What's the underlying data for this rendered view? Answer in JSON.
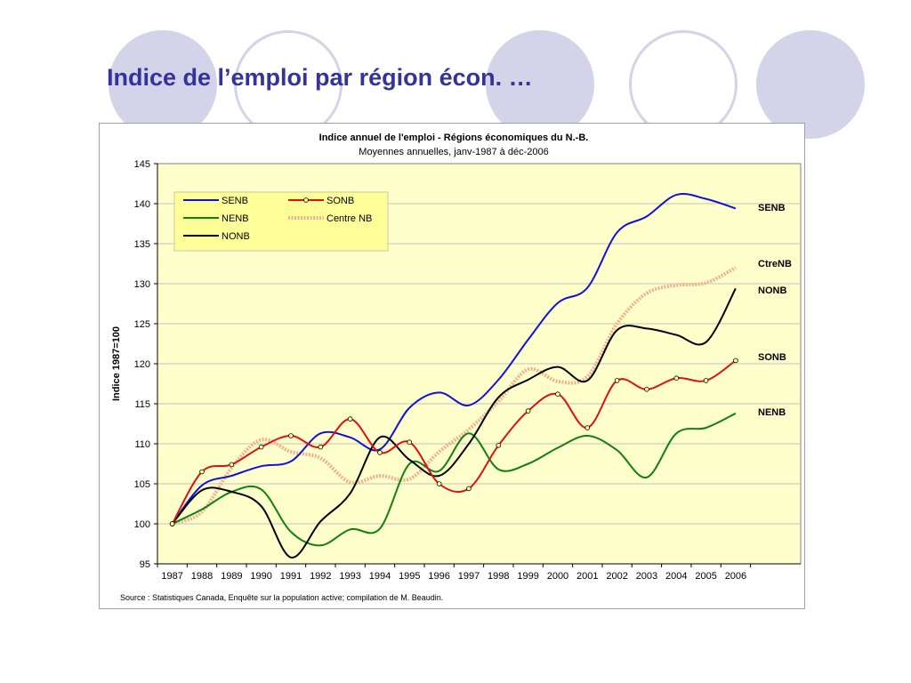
{
  "slide": {
    "title": "Indice de l’emploi par région écon. …"
  },
  "chart_data": {
    "type": "line",
    "title": "Indice annuel de l'emploi - Régions économiques du N.-B.",
    "subtitle": "Moyennes annuelles, janv-1987 à déc-2006",
    "xlabel": "",
    "ylabel": "Indice 1987=100",
    "x": [
      "1987",
      "1988",
      "1989",
      "1990",
      "1991",
      "1992",
      "1993",
      "1994",
      "1995",
      "1996",
      "1997",
      "1998",
      "1999",
      "2000",
      "2001",
      "2002",
      "2003",
      "2004",
      "2005",
      "2006"
    ],
    "ylim": [
      95,
      145
    ],
    "yticks": [
      95,
      100,
      105,
      110,
      115,
      120,
      125,
      130,
      135,
      140,
      145
    ],
    "grid": "horizontal",
    "legend_position": "top-left",
    "plot_background": "#ffffcc",
    "series": [
      {
        "name": "SENB",
        "color": "#1010e0",
        "style": "solid",
        "markers": false,
        "end_label": "SENB",
        "values": [
          100,
          104.8,
          106,
          107.2,
          107.8,
          111.3,
          110.8,
          109.3,
          114.5,
          116.4,
          114.8,
          118,
          123,
          127.6,
          129.5,
          136.4,
          138.4,
          141.1,
          140.6,
          139.4
        ]
      },
      {
        "name": "SONB",
        "color": "#e01010",
        "style": "solid",
        "markers": true,
        "end_label": "SONB",
        "values": [
          100,
          106.5,
          107.4,
          109.6,
          111,
          109.6,
          113.1,
          108.9,
          110.2,
          105,
          104.4,
          109.8,
          114.1,
          116.2,
          112,
          117.9,
          116.8,
          118.2,
          117.9,
          120.4
        ]
      },
      {
        "name": "NENB",
        "color": "#108010",
        "style": "solid",
        "markers": false,
        "end_label": "NENB",
        "values": [
          100,
          101.8,
          104,
          104.3,
          99,
          97.3,
          99.3,
          99.4,
          107.5,
          106.6,
          111.3,
          106.8,
          107.5,
          109.5,
          111,
          109.2,
          105.8,
          111.3,
          112,
          113.8
        ]
      },
      {
        "name": "Centre NB",
        "color": "#f0b090",
        "style": "dashed",
        "markers": false,
        "end_label": "CtreNB",
        "values": [
          100,
          101.5,
          107,
          110.5,
          109,
          108.2,
          105.2,
          106,
          105.6,
          109,
          111.8,
          115.3,
          119.3,
          117.8,
          118.4,
          125,
          128.8,
          129.8,
          130.1,
          132
        ]
      },
      {
        "name": "NONB",
        "color": "#000000",
        "style": "solid",
        "markers": false,
        "end_label": "NONB",
        "values": [
          100,
          104.2,
          104,
          102.2,
          95.8,
          100.3,
          103.8,
          110.8,
          108,
          106,
          110,
          115.8,
          118,
          119.6,
          117.9,
          124.2,
          124.4,
          123.6,
          122.7,
          129.4
        ]
      }
    ],
    "source": "Source : Statistiques Canada, Enquête sur la population active; compilation de M. Beaudin."
  }
}
